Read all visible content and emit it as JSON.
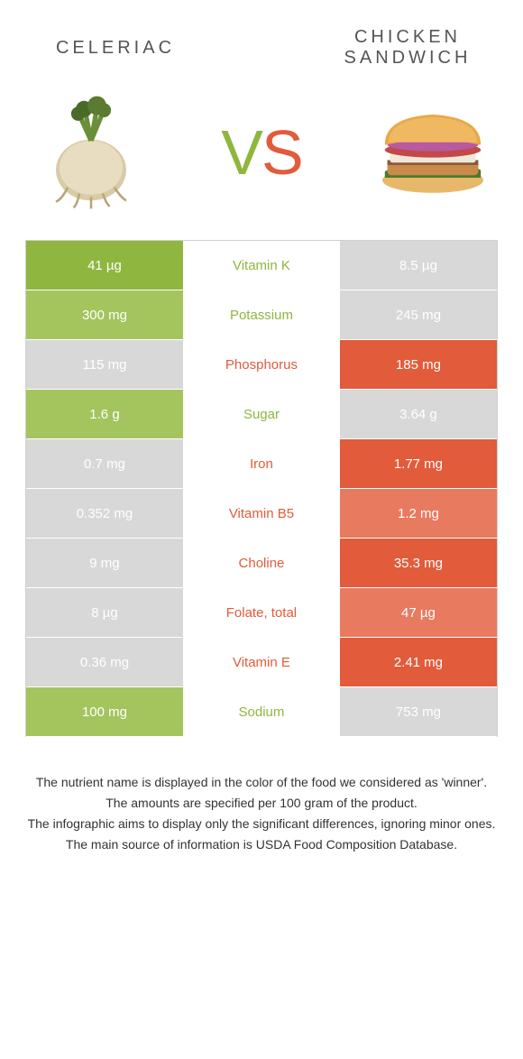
{
  "colors": {
    "green": "#8fb63f",
    "greenLight": "#a4c45e",
    "orange": "#e25b3a",
    "orangeLight": "#e87a5f",
    "cellGray": "#d8d8d8",
    "text": "#555555"
  },
  "titles": {
    "left": "CELERIAC",
    "right": "CHICKEN SANDWICH"
  },
  "vs": {
    "v": "V",
    "s": "S"
  },
  "rows": [
    {
      "left": "41 µg",
      "mid": "Vitamin K",
      "right": "8.5 µg",
      "winner": "left"
    },
    {
      "left": "300 mg",
      "mid": "Potassium",
      "right": "245 mg",
      "winner": "left"
    },
    {
      "left": "115 mg",
      "mid": "Phosphorus",
      "right": "185 mg",
      "winner": "right"
    },
    {
      "left": "1.6 g",
      "mid": "Sugar",
      "right": "3.64 g",
      "winner": "left"
    },
    {
      "left": "0.7 mg",
      "mid": "Iron",
      "right": "1.77 mg",
      "winner": "right"
    },
    {
      "left": "0.352 mg",
      "mid": "Vitamin B5",
      "right": "1.2 mg",
      "winner": "right"
    },
    {
      "left": "9 mg",
      "mid": "Choline",
      "right": "35.3 mg",
      "winner": "right"
    },
    {
      "left": "8 µg",
      "mid": "Folate, total",
      "right": "47 µg",
      "winner": "right"
    },
    {
      "left": "0.36 mg",
      "mid": "Vitamin E",
      "right": "2.41 mg",
      "winner": "right"
    },
    {
      "left": "100 mg",
      "mid": "Sodium",
      "right": "753 mg",
      "winner": "left"
    }
  ],
  "notes": [
    "The nutrient name is displayed in the color of the food we considered as 'winner'.",
    "The amounts are specified per 100 gram of the product.",
    "The infographic aims to display only the significant differences, ignoring minor ones.",
    "The main source of information is USDA Food Composition Database."
  ]
}
